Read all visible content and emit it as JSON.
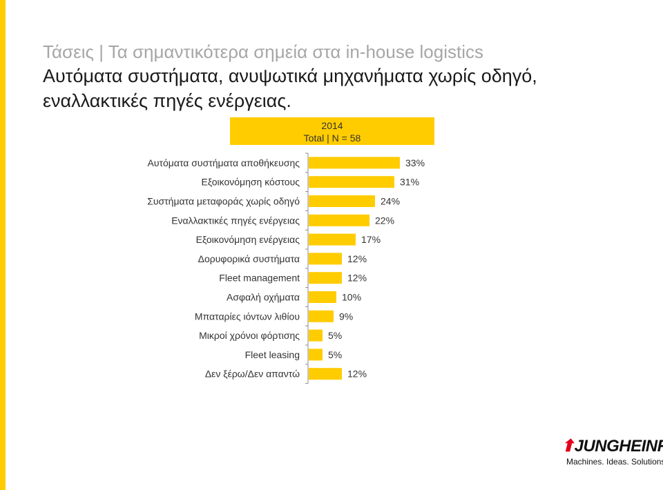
{
  "slide": {
    "title_gray": "Τάσεις | Τα σημαντικότερα σημεία στα in-house logistics",
    "title_dark_line1": "Αυτόματα συστήματα, ανυψωτικά μηχανήματα χωρίς οδηγό,",
    "title_dark_line2": "εναλλακτικές πηγές ενέργειας."
  },
  "header": {
    "year": "2014",
    "sample": "Total | N = 58"
  },
  "colors": {
    "bar": "#FFCC00",
    "accent": "#FFCC00",
    "logo_red": "#E2001A"
  },
  "logo": {
    "brand": "JUNGHEINRICH",
    "tagline": "Machines. Ideas. Solutions."
  },
  "chart_data": {
    "type": "bar",
    "orientation": "horizontal",
    "categories": [
      "Αυτόματα συστήματα αποθήκευσης",
      "Εξοικονόμηση κόστους",
      "Συστήματα μεταφοράς χωρίς οδηγό",
      "Εναλλακτικές πηγές ενέργειας",
      "Εξοικονόμηση ενέργειας",
      "Δορυφορικά συστήματα",
      "Fleet management",
      "Ασφαλή οχήματα",
      "Μπαταρίες ιόντων λιθίου",
      "Μικροί χρόνοι φόρτισης",
      "Fleet leasing",
      "Δεν ξέρω/Δεν απαντώ"
    ],
    "values": [
      33,
      31,
      24,
      22,
      17,
      12,
      12,
      10,
      9,
      5,
      5,
      12
    ],
    "data_labels": [
      "33%",
      "31%",
      "24%",
      "22%",
      "17%",
      "12%",
      "12%",
      "10%",
      "9%",
      "5%",
      "5%",
      "12%"
    ],
    "xlim": [
      0,
      100
    ],
    "grid": false,
    "legend": "none"
  }
}
